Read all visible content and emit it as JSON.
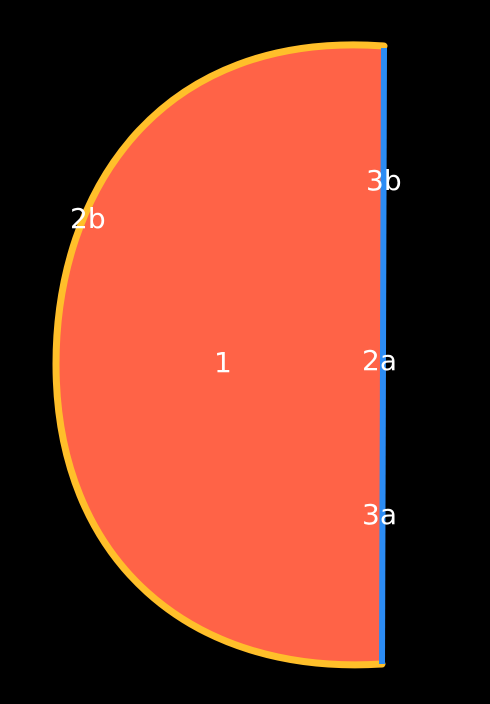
{
  "colors": {
    "background": "#000000",
    "face_fill": "#ff6347",
    "curved_edge": "#ffbf2a",
    "straight_edge": "#2c8cf4",
    "label_text": "#ffffff"
  },
  "labels": {
    "face": "1",
    "straight_edge": "2a",
    "curved_edge": "2b",
    "bottom_vertex": "3a",
    "top_vertex": "3b"
  }
}
